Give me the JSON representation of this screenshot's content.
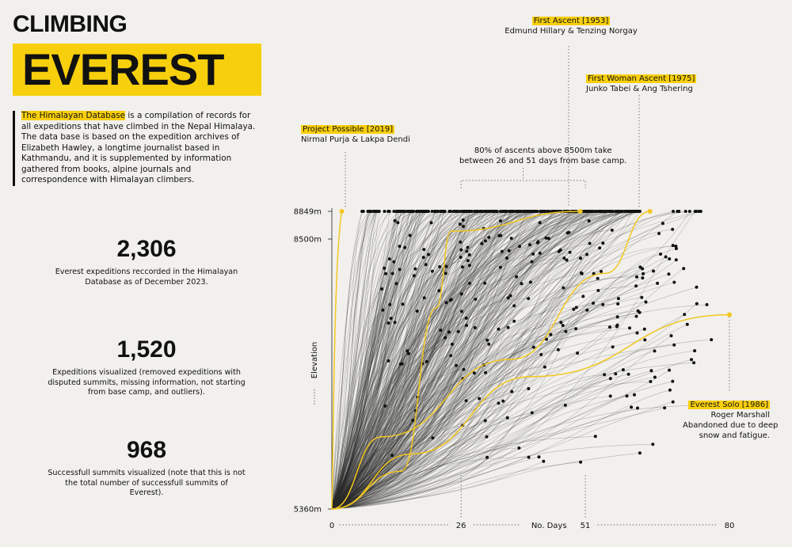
{
  "title": {
    "line1": "CLIMBING",
    "line2": "EVEREST"
  },
  "intro": {
    "highlight": "The Himalayan Database",
    "text": " is a compilation of records for all expeditions that have climbed in the Nepal Himalaya. The data base is based on the expedition archives of Elizabeth Hawley, a longtime journalist based in Kathmandu, and it is supplemented by information gathered from books, alpine journals and correspondence with Himalayan climbers."
  },
  "stats": [
    {
      "value": "2,306",
      "desc": "Everest expeditions reccorded in the Himalayan Database as of December 2023."
    },
    {
      "value": "1,520",
      "desc": "Expeditions visualized (removed expeditions with disputed summits, missing information, not starting from base camp, and outliers)."
    },
    {
      "value": "968",
      "desc": "Successfull summits visualized (note that this is not the total number of successfull summits of Everest)."
    }
  ],
  "chart_data": {
    "type": "line",
    "xlabel": "No. Days",
    "ylabel": "Elevation",
    "x_ticks": [
      0,
      26,
      51,
      80
    ],
    "xlim": [
      0,
      80
    ],
    "y_ticks": [
      {
        "value": 5360,
        "label": "5360m"
      },
      {
        "value": 8500,
        "label": "8500m"
      },
      {
        "value": 8849,
        "label": "8849m"
      }
    ],
    "ylim": [
      5360,
      8849
    ],
    "bracket_range_days": [
      26,
      51
    ],
    "colors": {
      "background_lines": "#2a2a2a",
      "highlight": "#f2c71e",
      "points": "#111111"
    },
    "highlighted": [
      {
        "tag": "Project Possible [2019]",
        "names": [
          "Nirmal Purja &  Lakpa Dendi"
        ],
        "points": [
          [
            0,
            5360
          ],
          [
            1,
            7800
          ],
          [
            2,
            8849
          ]
        ]
      },
      {
        "tag": "First Ascent [1953]",
        "names": [
          "Edmund Hillary & Tenzing Norgay"
        ],
        "points": [
          [
            0,
            5360
          ],
          [
            14,
            5800
          ],
          [
            21,
            7700
          ],
          [
            24,
            8600
          ],
          [
            50,
            8849
          ]
        ]
      },
      {
        "tag": "First Woman Ascent [1975]",
        "names": [
          "Junko Tabei & Ang Tshering"
        ],
        "points": [
          [
            0,
            5360
          ],
          [
            10,
            6200
          ],
          [
            36,
            7100
          ],
          [
            55,
            8100
          ],
          [
            64,
            8849
          ]
        ]
      },
      {
        "tag": "Everest Solo [1986]",
        "names": [
          "Roger Marshall",
          "Abandoned due to deep",
          "snow and fatigue."
        ],
        "points": [
          [
            0,
            5360
          ],
          [
            16,
            6000
          ],
          [
            40,
            6900
          ],
          [
            80,
            7620
          ]
        ]
      }
    ]
  },
  "annotations": {
    "bracket_note": [
      "80% of ascents above 8500m take",
      "between 26 and 51 days from base camp."
    ]
  }
}
